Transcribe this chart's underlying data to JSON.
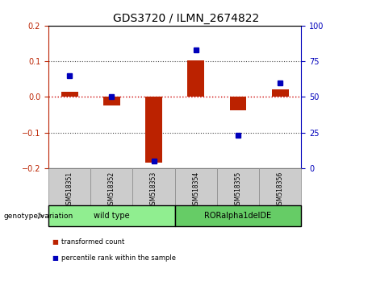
{
  "title": "GDS3720 / ILMN_2674822",
  "samples": [
    "GSM518351",
    "GSM518352",
    "GSM518353",
    "GSM518354",
    "GSM518355",
    "GSM518356"
  ],
  "red_values": [
    0.015,
    -0.025,
    -0.185,
    0.102,
    -0.038,
    0.022
  ],
  "blue_values_pct": [
    65,
    50,
    5,
    83,
    23,
    60
  ],
  "ylim_left": [
    -0.2,
    0.2
  ],
  "ylim_right": [
    0,
    100
  ],
  "yticks_left": [
    -0.2,
    -0.1,
    0.0,
    0.1,
    0.2
  ],
  "yticks_right": [
    0,
    25,
    50,
    75,
    100
  ],
  "groups": [
    {
      "label": "wild type",
      "indices": [
        0,
        1,
        2
      ],
      "color": "#90EE90"
    },
    {
      "label": "RORalpha1delDE",
      "indices": [
        3,
        4,
        5
      ],
      "color": "#66CC66"
    }
  ],
  "genotype_label": "genotype/variation",
  "legend_red": "transformed count",
  "legend_blue": "percentile rank within the sample",
  "red_color": "#BB2200",
  "blue_color": "#0000BB",
  "bar_width": 0.4,
  "dotted_line_color": "#444444",
  "zero_line_color": "#CC0000",
  "tick_bg": "#CCCCCC",
  "title_fontsize": 10
}
